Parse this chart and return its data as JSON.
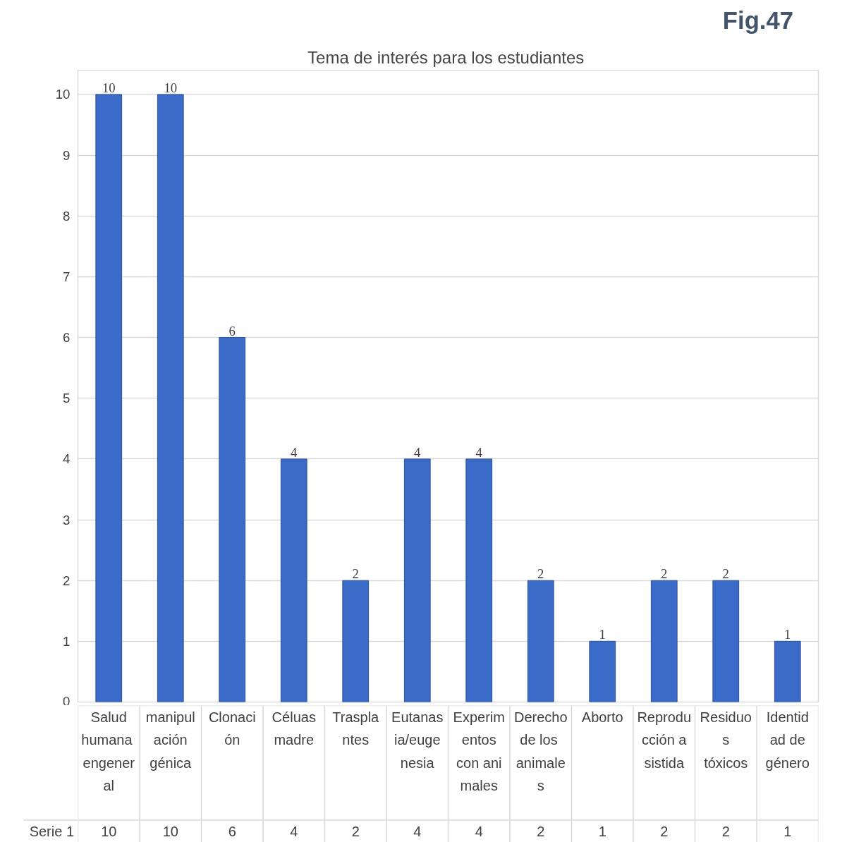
{
  "chart_data": {
    "type": "bar",
    "title": "Tema de  interés para los estudiantes",
    "categories": [
      "Salud humana engeneral",
      "manipulación génica",
      "Clonación",
      "Céluas madre",
      "Trasplantes",
      "Eutanasia/eugenesia",
      "Experimentos con animales",
      "Derecho de los animales",
      "Aborto",
      "Reproducción asistida",
      "Residuos tóxicos",
      "Identidad de género"
    ],
    "series": [
      {
        "name": "Serie 1",
        "color": "#3a6bc9",
        "values": [
          10,
          10,
          6,
          4,
          2,
          4,
          4,
          2,
          1,
          2,
          2,
          1
        ],
        "value_labels": [
          "10",
          "10",
          "6",
          "4",
          "2",
          "4",
          "4",
          "2",
          "1",
          "2",
          "2",
          "1"
        ]
      }
    ],
    "ylim": [
      0,
      10.4
    ],
    "yticks": [
      0,
      1,
      2,
      3,
      4,
      5,
      6,
      7,
      8,
      9,
      10
    ],
    "grid": "y",
    "data_labels": true,
    "annotations": [
      "Fig.47"
    ]
  }
}
